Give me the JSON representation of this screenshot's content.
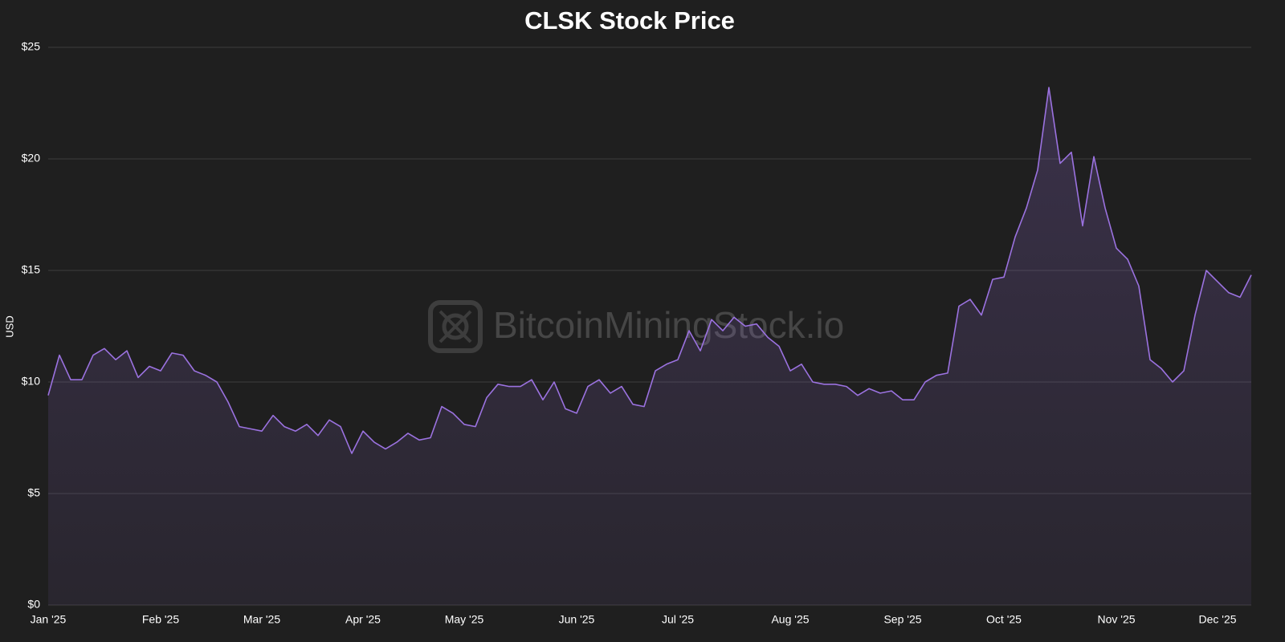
{
  "chart_data": {
    "type": "area",
    "title": "CLSK Stock Price",
    "y_label": "USD",
    "watermark": "BitcoinMiningStock.io",
    "categories": [
      "Jan '25",
      null,
      null,
      null,
      null,
      null,
      null,
      null,
      null,
      null,
      "Feb '25",
      null,
      null,
      null,
      null,
      null,
      null,
      null,
      null,
      "Mar '25",
      null,
      null,
      null,
      null,
      null,
      null,
      null,
      null,
      "Apr '25",
      null,
      null,
      null,
      null,
      null,
      null,
      null,
      null,
      "May '25",
      null,
      null,
      null,
      null,
      null,
      null,
      null,
      null,
      null,
      "Jun '25",
      null,
      null,
      null,
      null,
      null,
      null,
      null,
      null,
      "Jul '25",
      null,
      null,
      null,
      null,
      null,
      null,
      null,
      null,
      null,
      "Aug '25",
      null,
      null,
      null,
      null,
      null,
      null,
      null,
      null,
      null,
      "Sep '25",
      null,
      null,
      null,
      null,
      null,
      null,
      null,
      null,
      "Oct '25",
      null,
      null,
      null,
      null,
      null,
      null,
      null,
      null,
      null,
      "Nov '25",
      null,
      null,
      null,
      null,
      null,
      null,
      null,
      null,
      "Dec '25",
      null,
      null,
      null
    ],
    "series": [
      {
        "name": "CLSK",
        "color": "#9b72e0",
        "values": [
          9.4,
          11.2,
          10.1,
          10.1,
          11.2,
          11.5,
          11.0,
          11.4,
          10.2,
          10.7,
          10.5,
          11.3,
          11.2,
          10.5,
          10.3,
          10.0,
          9.1,
          8.0,
          7.9,
          7.8,
          8.5,
          8.0,
          7.8,
          8.1,
          7.6,
          8.3,
          8.0,
          6.8,
          7.8,
          7.3,
          7.0,
          7.3,
          7.7,
          7.4,
          7.5,
          8.9,
          8.6,
          8.1,
          8.0,
          9.3,
          9.9,
          9.8,
          9.8,
          10.1,
          9.2,
          10.0,
          8.8,
          8.6,
          9.8,
          10.1,
          9.5,
          9.8,
          9.0,
          8.9,
          10.5,
          10.8,
          11.0,
          12.3,
          11.4,
          12.8,
          12.3,
          12.9,
          12.5,
          12.6,
          12.0,
          11.6,
          10.5,
          10.8,
          10.0,
          9.9,
          9.9,
          9.8,
          9.4,
          9.7,
          9.5,
          9.6,
          9.2,
          9.2,
          10.0,
          10.3,
          10.4,
          13.4,
          13.7,
          13.0,
          14.6,
          14.7,
          16.5,
          17.8,
          19.5,
          23.2,
          19.8,
          20.3,
          17.0,
          20.1,
          17.8,
          16.0,
          15.5,
          14.3,
          11.0,
          10.6,
          10.0,
          10.5,
          13.0,
          15.0,
          14.5,
          14.0,
          13.8,
          14.8
        ]
      }
    ],
    "ylim": [
      0,
      25
    ],
    "yticks": [
      {
        "value": 0,
        "label": "$0"
      },
      {
        "value": 5,
        "label": "$5"
      },
      {
        "value": 10,
        "label": "$10"
      },
      {
        "value": 15,
        "label": "$15"
      },
      {
        "value": 20,
        "label": "$20"
      },
      {
        "value": 25,
        "label": "$25"
      }
    ],
    "grid": true
  }
}
